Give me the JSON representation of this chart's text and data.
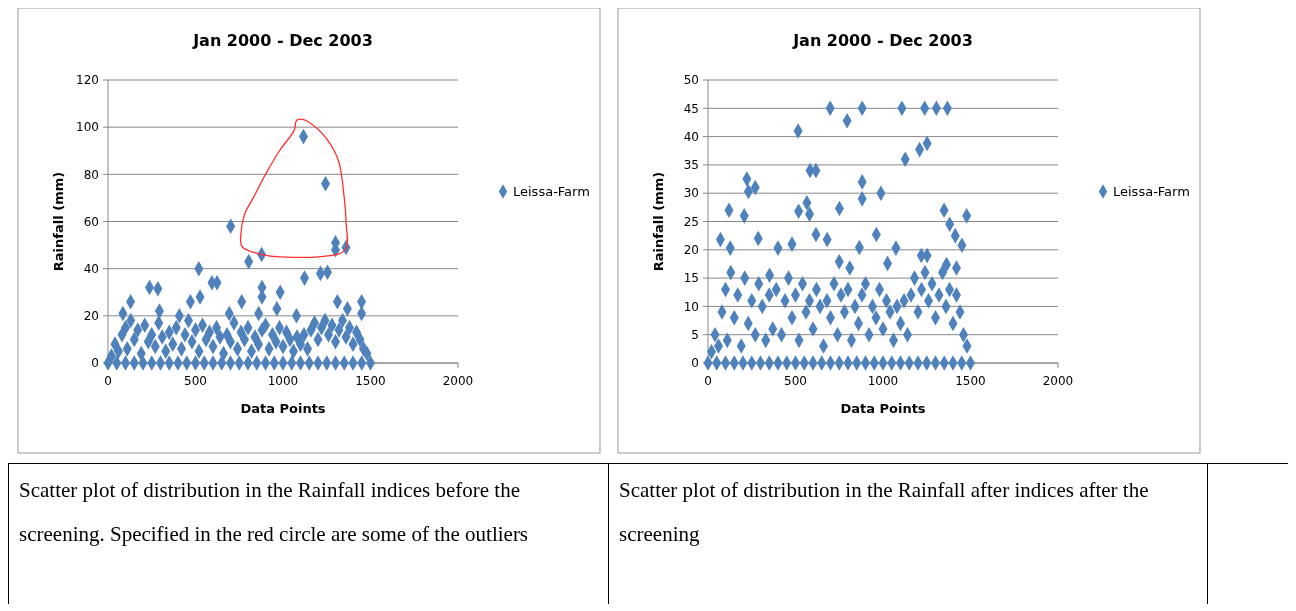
{
  "chart_data": [
    {
      "type": "scatter",
      "title": "Jan 2000 - Dec 2003",
      "xlabel": "Data Points",
      "ylabel": "Rainfall (mm)",
      "xlim": [
        0,
        2000
      ],
      "xticks": [
        0,
        500,
        1000,
        1500,
        2000
      ],
      "ylim": [
        0,
        120
      ],
      "yticks": [
        0,
        20,
        40,
        60,
        80,
        100,
        120
      ],
      "grid": "y",
      "legend": "right",
      "marker": "diamond",
      "annotations": [
        "Scatter plot of distribution in the Rainfall indices before the screening. Specified in the red circle are some of the outliers"
      ],
      "series": [
        {
          "name": "Leissa-Farm",
          "color": "#4f81bd",
          "x": [
            0,
            50,
            100,
            150,
            200,
            250,
            300,
            350,
            400,
            450,
            500,
            550,
            600,
            650,
            700,
            750,
            800,
            850,
            900,
            950,
            1000,
            1050,
            1100,
            1150,
            1200,
            1250,
            1300,
            1350,
            1400,
            1450,
            1500,
            20,
            40,
            60,
            80,
            100,
            110,
            130,
            150,
            170,
            190,
            210,
            230,
            250,
            270,
            290,
            310,
            330,
            350,
            370,
            390,
            420,
            440,
            460,
            480,
            500,
            520,
            540,
            560,
            580,
            600,
            620,
            640,
            660,
            680,
            700,
            720,
            740,
            760,
            780,
            800,
            820,
            840,
            860,
            880,
            900,
            920,
            940,
            960,
            980,
            1000,
            1020,
            1040,
            1060,
            1080,
            1100,
            1120,
            1140,
            1160,
            1180,
            1200,
            1220,
            1240,
            1260,
            1280,
            1300,
            1320,
            1340,
            1360,
            1380,
            1400,
            1420,
            1440,
            1460,
            1480,
            237,
            285,
            129,
            85,
            408,
            471,
            526,
            594,
            623,
            764,
            880,
            880,
            984,
            1077,
            1311,
            1449,
            1449,
            294,
            693,
            861,
            965,
            1368,
            1117,
            1243,
            701,
            1300,
            1300,
            1360,
            878,
            804,
            519,
            1214,
            1254,
            1123
          ],
          "values": [
            0,
            0,
            0,
            0,
            0,
            0,
            0,
            0,
            0,
            0,
            0,
            0,
            0,
            0,
            0,
            0,
            0,
            0,
            0,
            0,
            0,
            0,
            0,
            0,
            0,
            0,
            0,
            0,
            0,
            0,
            0,
            3,
            8,
            5,
            12,
            15,
            6,
            18,
            10,
            14,
            4,
            16,
            9,
            12,
            7,
            17,
            11,
            5,
            13,
            8,
            15,
            6,
            12,
            18,
            9,
            14,
            5,
            16,
            10,
            13,
            7,
            15,
            11,
            4,
            12,
            9,
            17,
            6,
            13,
            10,
            15,
            5,
            11,
            8,
            14,
            16,
            6,
            12,
            9,
            15,
            7,
            13,
            10,
            5,
            11,
            8,
            12,
            6,
            14,
            17,
            10,
            15,
            18,
            12,
            16,
            9,
            14,
            18,
            11,
            15,
            8,
            13,
            10,
            6,
            4,
            32,
            31.5,
            26,
            21,
            20,
            26,
            28,
            34,
            34,
            26,
            32,
            28,
            30,
            20,
            26,
            26,
            21,
            22,
            21,
            21,
            23,
            23,
            96,
            76,
            58,
            51,
            48,
            49,
            46,
            43,
            40,
            38,
            38.5,
            36
          ]
        }
      ]
    },
    {
      "type": "scatter",
      "title": "Jan 2000 - Dec 2003",
      "xlabel": "Data Points",
      "ylabel": "Rainfall (mm)",
      "xlim": [
        0,
        2000
      ],
      "xticks": [
        0,
        500,
        1000,
        1500,
        2000
      ],
      "ylim": [
        0,
        50
      ],
      "yticks": [
        0,
        5,
        10,
        15,
        20,
        25,
        30,
        35,
        40,
        45,
        50
      ],
      "grid": "y",
      "legend": "right",
      "marker": "diamond",
      "annotations": [
        "Scatter plot of distribution in the Rainfall after indices after the screening"
      ],
      "series": [
        {
          "name": "Leissa-Farm",
          "color": "#4f81bd",
          "x": [
            0,
            50,
            100,
            150,
            200,
            250,
            300,
            350,
            400,
            450,
            500,
            550,
            600,
            650,
            700,
            750,
            800,
            850,
            900,
            950,
            1000,
            1050,
            1100,
            1150,
            1200,
            1250,
            1300,
            1350,
            1400,
            1450,
            1500,
            20,
            40,
            60,
            80,
            100,
            110,
            130,
            150,
            170,
            190,
            210,
            230,
            250,
            270,
            290,
            310,
            330,
            350,
            370,
            390,
            420,
            440,
            460,
            480,
            500,
            520,
            540,
            560,
            580,
            600,
            620,
            640,
            660,
            680,
            700,
            720,
            740,
            760,
            780,
            800,
            820,
            840,
            860,
            880,
            900,
            920,
            940,
            960,
            980,
            1000,
            1020,
            1040,
            1060,
            1080,
            1100,
            1120,
            1140,
            1160,
            1180,
            1200,
            1220,
            1240,
            1260,
            1280,
            1300,
            1320,
            1340,
            1360,
            1380,
            1400,
            1420,
            1440,
            1460,
            1480,
            71,
            127,
            287,
            400,
            480,
            617,
            681,
            962,
            1074,
            865,
            1451,
            750,
            810,
            1026,
            1363,
            1420,
            352,
            1219,
            1252,
            698,
            881,
            1108,
            1238,
            1305,
            1368,
            795,
            515,
            1209,
            1252,
            1127,
            583,
            617,
            222,
            270,
            231,
            881,
            881,
            988,
            120,
            207,
            518,
            565,
            580,
            751,
            1349,
            1478,
            1381,
            1413
          ],
          "values": [
            0,
            0,
            0,
            0,
            0,
            0,
            0,
            0,
            0,
            0,
            0,
            0,
            0,
            0,
            0,
            0,
            0,
            0,
            0,
            0,
            0,
            0,
            0,
            0,
            0,
            0,
            0,
            0,
            0,
            0,
            0,
            2,
            5,
            3,
            9,
            13,
            4,
            16,
            8,
            12,
            3,
            15,
            7,
            11,
            5,
            14,
            10,
            4,
            12,
            6,
            13,
            5,
            11,
            15,
            8,
            12,
            4,
            14,
            9,
            11,
            6,
            13,
            10,
            3,
            11,
            8,
            14,
            5,
            12,
            9,
            13,
            4,
            10,
            7,
            12,
            14,
            5,
            10,
            8,
            13,
            6,
            11,
            9,
            4,
            10,
            7,
            11,
            5,
            12,
            15,
            9,
            13,
            16,
            11,
            14,
            8,
            12,
            16,
            10,
            13,
            7,
            12,
            9,
            5,
            3,
            21.8,
            20.3,
            22,
            20.3,
            21,
            22.7,
            21.8,
            22.7,
            20.3,
            20.4,
            20.8,
            17.9,
            16.8,
            17.6,
            17.4,
            16.8,
            15.5,
            19,
            19,
            45,
            45,
            45,
            45,
            45,
            45,
            42.8,
            41,
            37.7,
            38.8,
            36,
            34,
            34,
            32.5,
            31,
            30.3,
            32,
            29,
            30,
            27,
            26,
            26.8,
            28.3,
            26.3,
            27.3,
            27,
            26,
            24.5,
            22.5
          ]
        }
      ]
    }
  ]
}
